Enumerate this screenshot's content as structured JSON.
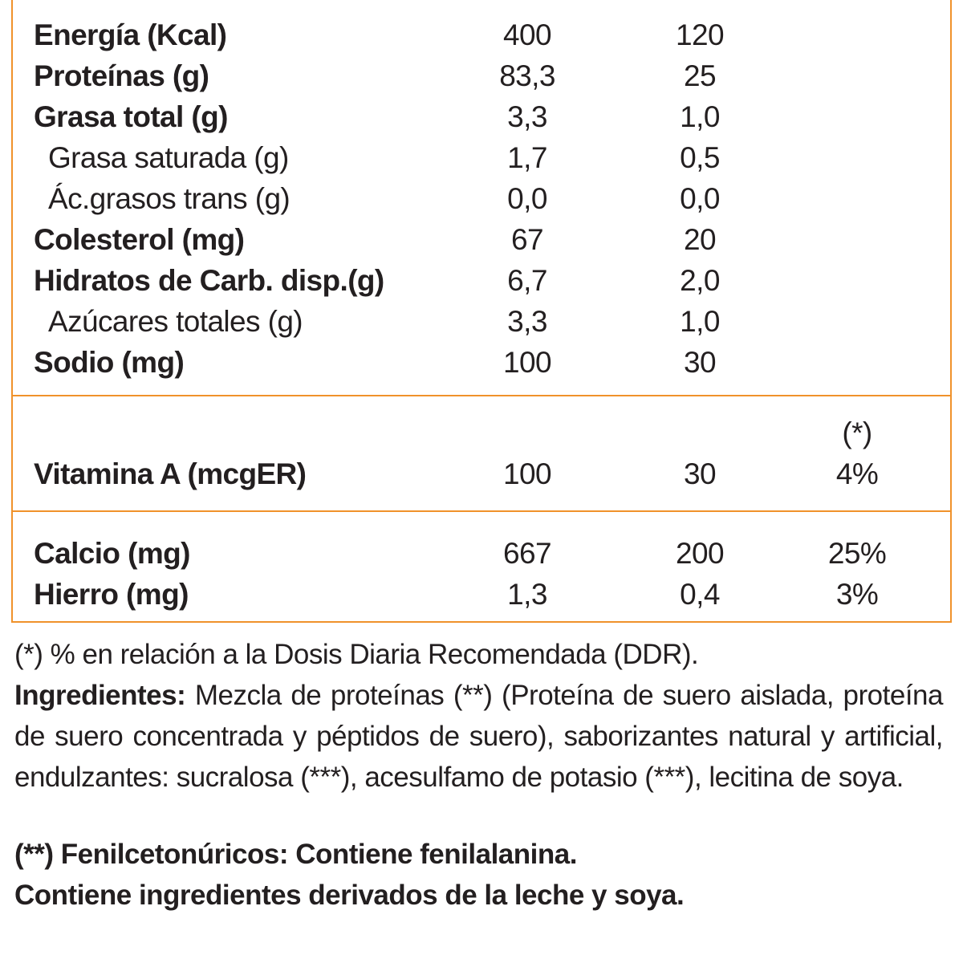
{
  "table": {
    "sections": [
      {
        "rows": [
          {
            "label": "Energía (Kcal)",
            "values": [
              "400",
              "120"
            ]
          },
          {
            "label": "Proteínas (g)",
            "values": [
              "83,3",
              "25"
            ]
          },
          {
            "label": "Grasa total (g)",
            "values": [
              "3,3",
              "1,0"
            ],
            "sub": [
              {
                "label": "Grasa saturada (g)",
                "values": [
                  "1,7",
                  "0,5"
                ]
              },
              {
                "label": "Ác.grasos trans (g)",
                "values": [
                  "0,0",
                  "0,0"
                ]
              }
            ]
          },
          {
            "label": "Colesterol (mg)",
            "values": [
              "67",
              "20"
            ]
          },
          {
            "label": "Hidratos de Carb. disp.(g)",
            "values": [
              "6,7",
              "2,0"
            ],
            "sub": [
              {
                "label": "Azúcares totales (g)",
                "values": [
                  "3,3",
                  "1,0"
                ]
              }
            ]
          },
          {
            "label": "Sodio (mg)",
            "values": [
              "100",
              "30"
            ]
          }
        ]
      },
      {
        "header": "(*)",
        "rows": [
          {
            "label": "Vitamina A (mcgER)",
            "values": [
              "100",
              "30",
              "4%"
            ]
          }
        ]
      },
      {
        "rows": [
          {
            "label": "Calcio (mg)",
            "values": [
              "667",
              "200",
              "25%"
            ]
          },
          {
            "label": "Hierro (mg)",
            "values": [
              "1,3",
              "0,4",
              "3%"
            ]
          }
        ]
      }
    ]
  },
  "notes": {
    "ddr": "(*) % en relación a la Dosis Diaria Recomendada (DDR).",
    "ingredients_label": "Ingredientes:",
    "ingredients": "Mezcla de proteínas (**) (Proteína de suero aislada, proteína de suero concentrada y péptidos de suero), saborizantes natural y artificial, endulzantes: sucralosa (***), acesulfamo de potasio (***), lecitina de soya.",
    "warning": "(**) Fenilcetonúricos: Contiene fenilalanina.",
    "allergens": "Contiene ingredientes derivados de la leche y soya."
  }
}
